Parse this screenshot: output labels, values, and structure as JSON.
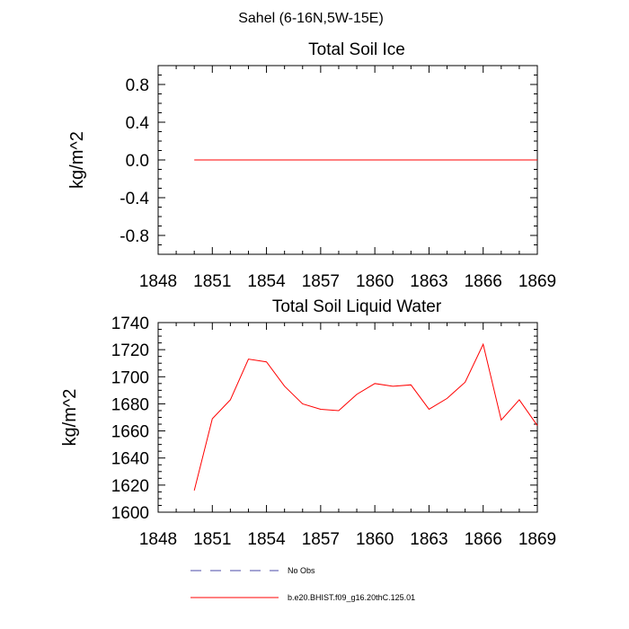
{
  "figure": {
    "title": "Sahel (6-16N,5W-15E)"
  },
  "colors": {
    "model_line": "#ff0000",
    "obs_line": "#4a4aa8",
    "axis": "#000000",
    "background": "#ffffff"
  },
  "legend": {
    "items": [
      {
        "label": "No Obs",
        "style": "dashed",
        "color": "#4a4aa8"
      },
      {
        "label": "b.e20.BHIST.f09_g16.20thC.125.01",
        "style": "solid",
        "color": "#ff0000"
      }
    ]
  },
  "chart_data": [
    {
      "type": "line",
      "title": "Total Soil Ice",
      "xlabel": "",
      "ylabel": "kg/m^2",
      "xlim": [
        1848,
        1869
      ],
      "ylim": [
        -1.0,
        1.0
      ],
      "xticks": [
        1848,
        1851,
        1854,
        1857,
        1860,
        1863,
        1866,
        1869
      ],
      "yticks": [
        -0.8,
        -0.4,
        0.0,
        0.4,
        0.8
      ],
      "ytick_labels": [
        "-0.8",
        "-0.4",
        "0.0",
        "0.4",
        "0.8"
      ],
      "grid": false,
      "series": [
        {
          "name": "b.e20.BHIST.f09_g16.20thC.125.01",
          "x": [
            1850,
            1851,
            1852,
            1853,
            1854,
            1855,
            1856,
            1857,
            1858,
            1859,
            1860,
            1861,
            1862,
            1863,
            1864,
            1865,
            1866,
            1867,
            1868,
            1869
          ],
          "y": [
            0,
            0,
            0,
            0,
            0,
            0,
            0,
            0,
            0,
            0,
            0,
            0,
            0,
            0,
            0,
            0,
            0,
            0,
            0,
            0
          ]
        }
      ]
    },
    {
      "type": "line",
      "title": "Total Soil Liquid Water",
      "xlabel": "",
      "ylabel": "kg/m^2",
      "xlim": [
        1848,
        1869
      ],
      "ylim": [
        1600,
        1740
      ],
      "xticks": [
        1848,
        1851,
        1854,
        1857,
        1860,
        1863,
        1866,
        1869
      ],
      "yticks": [
        1600,
        1620,
        1640,
        1660,
        1680,
        1700,
        1720,
        1740
      ],
      "ytick_labels": [
        "1600",
        "1620",
        "1640",
        "1660",
        "1680",
        "1700",
        "1720",
        "1740"
      ],
      "grid": false,
      "series": [
        {
          "name": "b.e20.BHIST.f09_g16.20thC.125.01",
          "x": [
            1850,
            1851,
            1852,
            1853,
            1854,
            1855,
            1856,
            1857,
            1858,
            1859,
            1860,
            1861,
            1862,
            1863,
            1864,
            1865,
            1866,
            1867,
            1868,
            1869
          ],
          "y": [
            1616,
            1669,
            1683,
            1713,
            1711,
            1693,
            1680,
            1676,
            1675,
            1687,
            1695,
            1693,
            1694,
            1676,
            1684,
            1696,
            1724,
            1668,
            1683,
            1664
          ]
        }
      ]
    }
  ]
}
